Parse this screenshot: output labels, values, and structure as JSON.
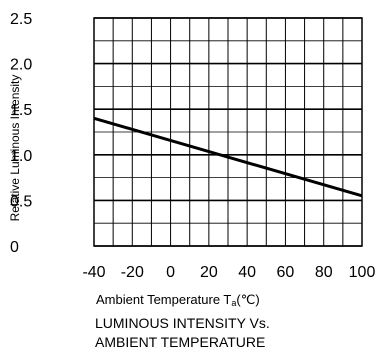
{
  "chart_data": {
    "type": "line",
    "caption_line1": "LUMINOUS INTENSITY Vs.",
    "caption_line2": "AMBIENT TEMPERATURE",
    "xlabel_main": "Ambient Temperature T",
    "xlabel_sub": "a",
    "xlabel_unit": "(℃)",
    "ylabel": "Relative Luminous Intensity",
    "xlim": [
      -40,
      100
    ],
    "ylim": [
      0,
      2.5
    ],
    "xticks": [
      -40,
      -20,
      0,
      20,
      40,
      60,
      80,
      100
    ],
    "xtick_labels": [
      "-40",
      "-20",
      "0",
      "20",
      "40",
      "60",
      "80",
      "100"
    ],
    "yticks": [
      0,
      0.5,
      1.0,
      1.5,
      2.0,
      2.5
    ],
    "ytick_labels": [
      "0",
      "0.5",
      "1.0",
      "1.5",
      "2.0",
      "2.5"
    ],
    "x_minor_step": 10,
    "y_minor_step": 0.25,
    "grid": true,
    "series": [
      {
        "x": [
          -40,
          100
        ],
        "y": [
          1.4,
          0.55
        ],
        "color": "#000000"
      }
    ]
  }
}
